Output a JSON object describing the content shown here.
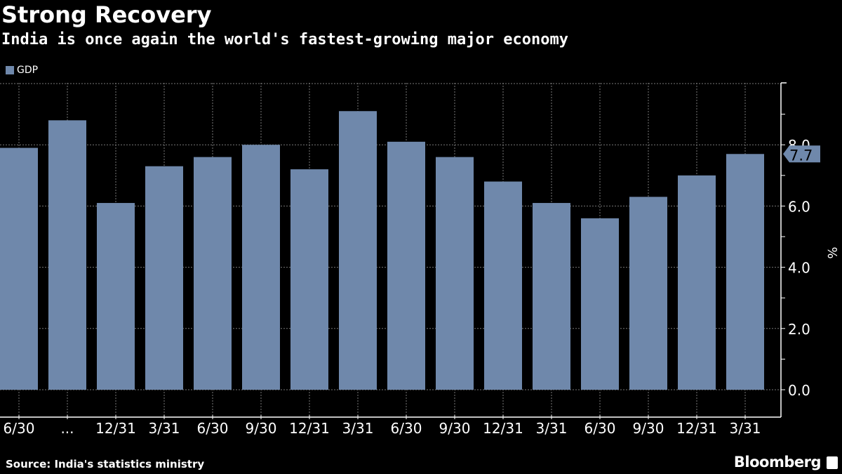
{
  "title": "Strong Recovery",
  "subtitle": "India is once again the world's fastest-growing major economy",
  "source": "Source: India's statistics ministry",
  "brand": "Bloomberg",
  "chart_data": {
    "type": "bar",
    "categories": [
      "6/30",
      "...",
      "12/31",
      "3/31",
      "6/30",
      "9/30",
      "12/31",
      "3/31",
      "6/30",
      "9/30",
      "12/31",
      "3/31",
      "6/30",
      "9/30",
      "12/31",
      "3/31"
    ],
    "series": [
      {
        "name": "GDP",
        "values": [
          7.9,
          8.8,
          6.1,
          7.3,
          7.6,
          8.0,
          7.2,
          9.1,
          8.1,
          7.6,
          6.8,
          6.1,
          5.6,
          6.3,
          7.0,
          7.7
        ],
        "color": "#6f88ab"
      }
    ],
    "ylabel": "%",
    "ylim": [
      -0.9,
      10
    ],
    "yticks": [
      "0.0",
      "2.0",
      "4.0",
      "6.0",
      "8.0"
    ],
    "last_value_label": "7.7",
    "legend": "top-left",
    "grid": true,
    "axis_side": "right"
  }
}
